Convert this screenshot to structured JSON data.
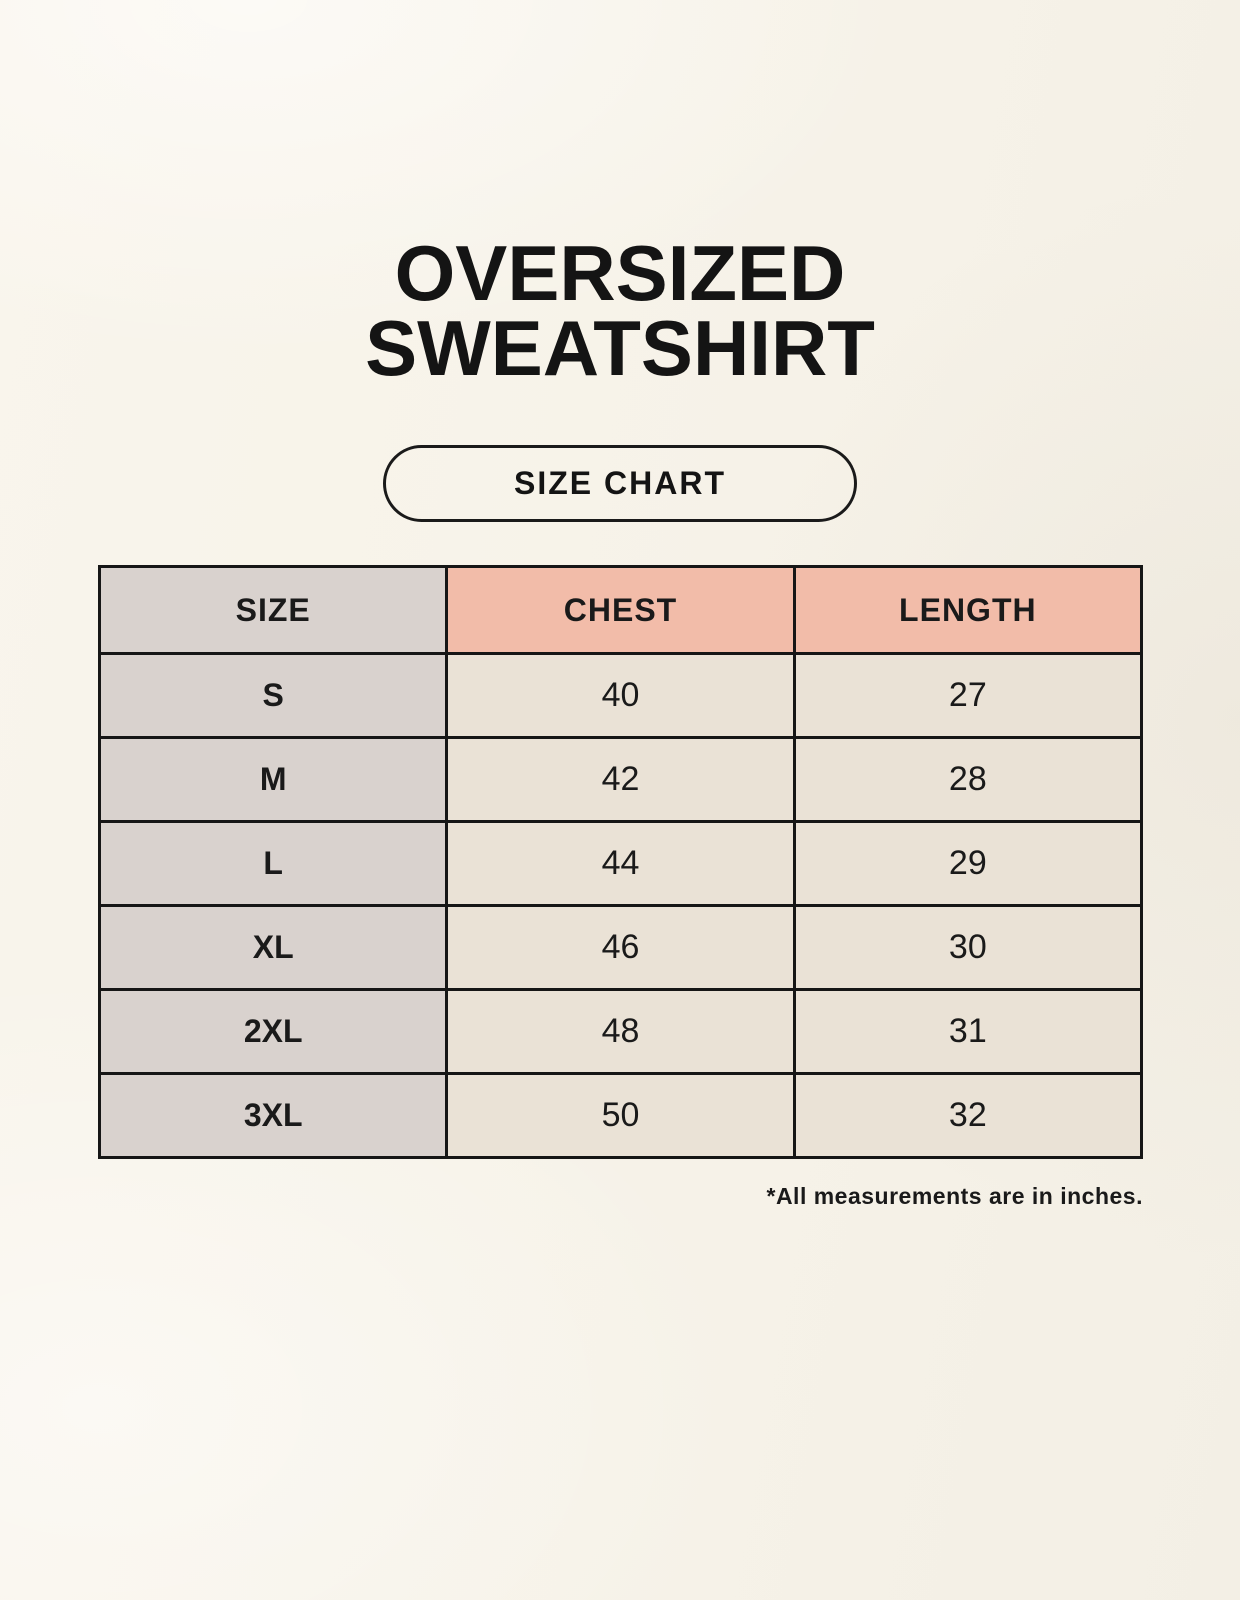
{
  "title": {
    "line1": "OVERSIZED",
    "line2": "SWEATSHIRT"
  },
  "size_chart_button": {
    "label": "SIZE CHART"
  },
  "table": {
    "headers": [
      "SIZE",
      "CHEST",
      "LENGTH"
    ],
    "rows": [
      {
        "size": "S",
        "chest": "40",
        "length": "27"
      },
      {
        "size": "M",
        "chest": "42",
        "length": "28"
      },
      {
        "size": "L",
        "chest": "44",
        "length": "29"
      },
      {
        "size": "XL",
        "chest": "46",
        "length": "30"
      },
      {
        "size": "2XL",
        "chest": "48",
        "length": "31"
      },
      {
        "size": "3XL",
        "chest": "50",
        "length": "32"
      }
    ]
  },
  "footnote": "*All measurements are in inches.",
  "colors": {
    "background": "#f7f3ea",
    "size_column_bg": "#d9d2ce",
    "measure_header_bg": "#f2bca9",
    "data_cell_bg": "#eae2d6",
    "border": "#161616",
    "text": "#1a1a1a"
  }
}
